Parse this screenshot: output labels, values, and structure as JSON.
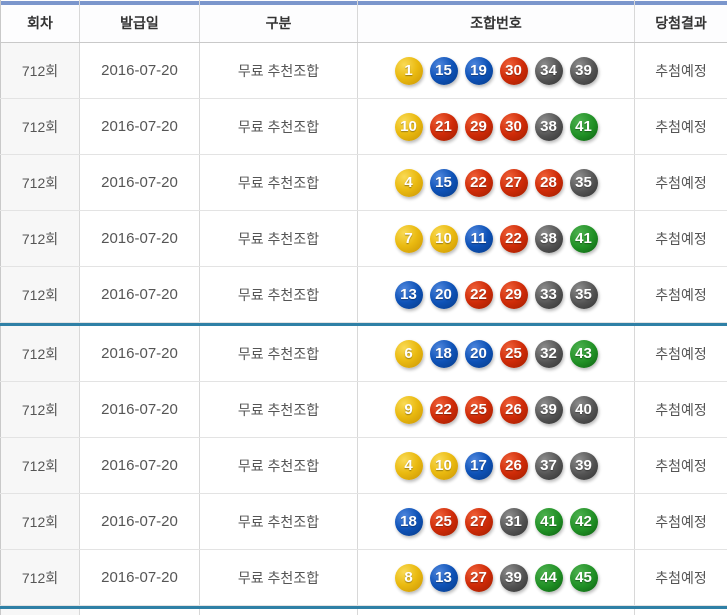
{
  "table": {
    "columns": [
      "회차",
      "발급일",
      "구분",
      "조합번호",
      "당첨결과"
    ],
    "rows": [
      {
        "round": "712회",
        "issue_date": "2016-07-20",
        "category": "무료 추천조합",
        "result": "추첨예정",
        "group": 1,
        "balls": [
          {
            "n": "1",
            "color": "yellow"
          },
          {
            "n": "15",
            "color": "blue"
          },
          {
            "n": "19",
            "color": "blue"
          },
          {
            "n": "30",
            "color": "red"
          },
          {
            "n": "34",
            "color": "gray"
          },
          {
            "n": "39",
            "color": "gray"
          }
        ]
      },
      {
        "round": "712회",
        "issue_date": "2016-07-20",
        "category": "무료 추천조합",
        "result": "추첨예정",
        "group": 1,
        "balls": [
          {
            "n": "10",
            "color": "yellow"
          },
          {
            "n": "21",
            "color": "red"
          },
          {
            "n": "29",
            "color": "red"
          },
          {
            "n": "30",
            "color": "red"
          },
          {
            "n": "38",
            "color": "gray"
          },
          {
            "n": "41",
            "color": "green"
          }
        ]
      },
      {
        "round": "712회",
        "issue_date": "2016-07-20",
        "category": "무료 추천조합",
        "result": "추첨예정",
        "group": 1,
        "balls": [
          {
            "n": "4",
            "color": "yellow"
          },
          {
            "n": "15",
            "color": "blue"
          },
          {
            "n": "22",
            "color": "red"
          },
          {
            "n": "27",
            "color": "red"
          },
          {
            "n": "28",
            "color": "red"
          },
          {
            "n": "35",
            "color": "gray"
          }
        ]
      },
      {
        "round": "712회",
        "issue_date": "2016-07-20",
        "category": "무료 추천조합",
        "result": "추첨예정",
        "group": 1,
        "balls": [
          {
            "n": "7",
            "color": "yellow"
          },
          {
            "n": "10",
            "color": "yellow"
          },
          {
            "n": "11",
            "color": "blue"
          },
          {
            "n": "22",
            "color": "red"
          },
          {
            "n": "38",
            "color": "gray"
          },
          {
            "n": "41",
            "color": "green"
          }
        ]
      },
      {
        "round": "712회",
        "issue_date": "2016-07-20",
        "category": "무료 추천조합",
        "result": "추첨예정",
        "group": 1,
        "balls": [
          {
            "n": "13",
            "color": "blue"
          },
          {
            "n": "20",
            "color": "blue"
          },
          {
            "n": "22",
            "color": "red"
          },
          {
            "n": "29",
            "color": "red"
          },
          {
            "n": "33",
            "color": "gray"
          },
          {
            "n": "35",
            "color": "gray"
          }
        ]
      },
      {
        "round": "712회",
        "issue_date": "2016-07-20",
        "category": "무료 추천조합",
        "result": "추첨예정",
        "group": 2,
        "balls": [
          {
            "n": "6",
            "color": "yellow"
          },
          {
            "n": "18",
            "color": "blue"
          },
          {
            "n": "20",
            "color": "blue"
          },
          {
            "n": "25",
            "color": "red"
          },
          {
            "n": "32",
            "color": "gray"
          },
          {
            "n": "43",
            "color": "green"
          }
        ]
      },
      {
        "round": "712회",
        "issue_date": "2016-07-20",
        "category": "무료 추천조합",
        "result": "추첨예정",
        "group": 2,
        "balls": [
          {
            "n": "9",
            "color": "yellow"
          },
          {
            "n": "22",
            "color": "red"
          },
          {
            "n": "25",
            "color": "red"
          },
          {
            "n": "26",
            "color": "red"
          },
          {
            "n": "39",
            "color": "gray"
          },
          {
            "n": "40",
            "color": "gray"
          }
        ]
      },
      {
        "round": "712회",
        "issue_date": "2016-07-20",
        "category": "무료 추천조합",
        "result": "추첨예정",
        "group": 2,
        "balls": [
          {
            "n": "4",
            "color": "yellow"
          },
          {
            "n": "10",
            "color": "yellow"
          },
          {
            "n": "17",
            "color": "blue"
          },
          {
            "n": "26",
            "color": "red"
          },
          {
            "n": "37",
            "color": "gray"
          },
          {
            "n": "39",
            "color": "gray"
          }
        ]
      },
      {
        "round": "712회",
        "issue_date": "2016-07-20",
        "category": "무료 추천조합",
        "result": "추첨예정",
        "group": 2,
        "balls": [
          {
            "n": "18",
            "color": "blue"
          },
          {
            "n": "25",
            "color": "red"
          },
          {
            "n": "27",
            "color": "red"
          },
          {
            "n": "31",
            "color": "gray"
          },
          {
            "n": "41",
            "color": "green"
          },
          {
            "n": "42",
            "color": "green"
          }
        ]
      },
      {
        "round": "712회",
        "issue_date": "2016-07-20",
        "category": "무료 추천조합",
        "result": "추첨예정",
        "group": 2,
        "balls": [
          {
            "n": "8",
            "color": "yellow"
          },
          {
            "n": "13",
            "color": "blue"
          },
          {
            "n": "27",
            "color": "red"
          },
          {
            "n": "39",
            "color": "gray"
          },
          {
            "n": "44",
            "color": "green"
          },
          {
            "n": "45",
            "color": "green"
          }
        ]
      }
    ]
  },
  "colors": {
    "accent_bar": "#7b96cc",
    "section_divider": "#2f80a6",
    "ball_yellow": "#eaba10",
    "ball_blue": "#0e52b7",
    "ball_red": "#cf2b08",
    "ball_gray": "#525252",
    "ball_green": "#1f8f24",
    "header_text": "#333333",
    "cell_text": "#555555",
    "shaded_column_bg": "#f7f7f7"
  }
}
